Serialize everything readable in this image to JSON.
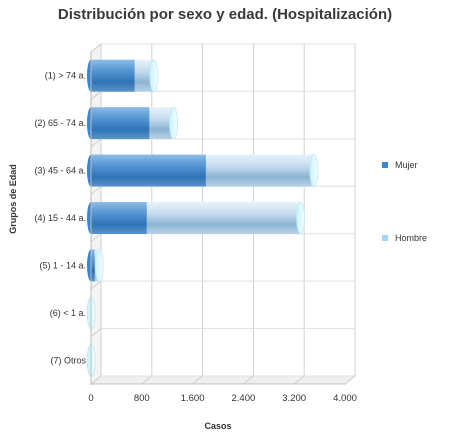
{
  "chart_data": {
    "type": "bar",
    "orientation": "horizontal",
    "stacked": true,
    "title": "Distribución por sexo y edad. (Hospitalización)",
    "xlabel": "Casos",
    "ylabel": "Grupos de Edad",
    "xlim": [
      0,
      4000
    ],
    "xticks": [
      0,
      800,
      1600,
      2400,
      3200,
      4000
    ],
    "xtick_labels": [
      "0",
      "800",
      "1.600",
      "2.400",
      "3.200",
      "4.000"
    ],
    "categories": [
      "(1) > 74 a.",
      "(2) 65 - 74 a.",
      "(3) 45 - 64 a.",
      "(4) 15 - 44 a.",
      "(5) 1 - 14 a.",
      "(6) < 1 a.",
      "(7) Otros"
    ],
    "series": [
      {
        "name": "Mujer",
        "color": "#3f84c8",
        "values": [
          690,
          920,
          1810,
          880,
          60,
          0,
          0
        ]
      },
      {
        "name": "Hombre",
        "color": "#a9cde8",
        "values": [
          300,
          380,
          1700,
          2420,
          70,
          5,
          5
        ]
      }
    ],
    "grid": true,
    "legend_position": "right",
    "style": "3d-cylinder"
  }
}
